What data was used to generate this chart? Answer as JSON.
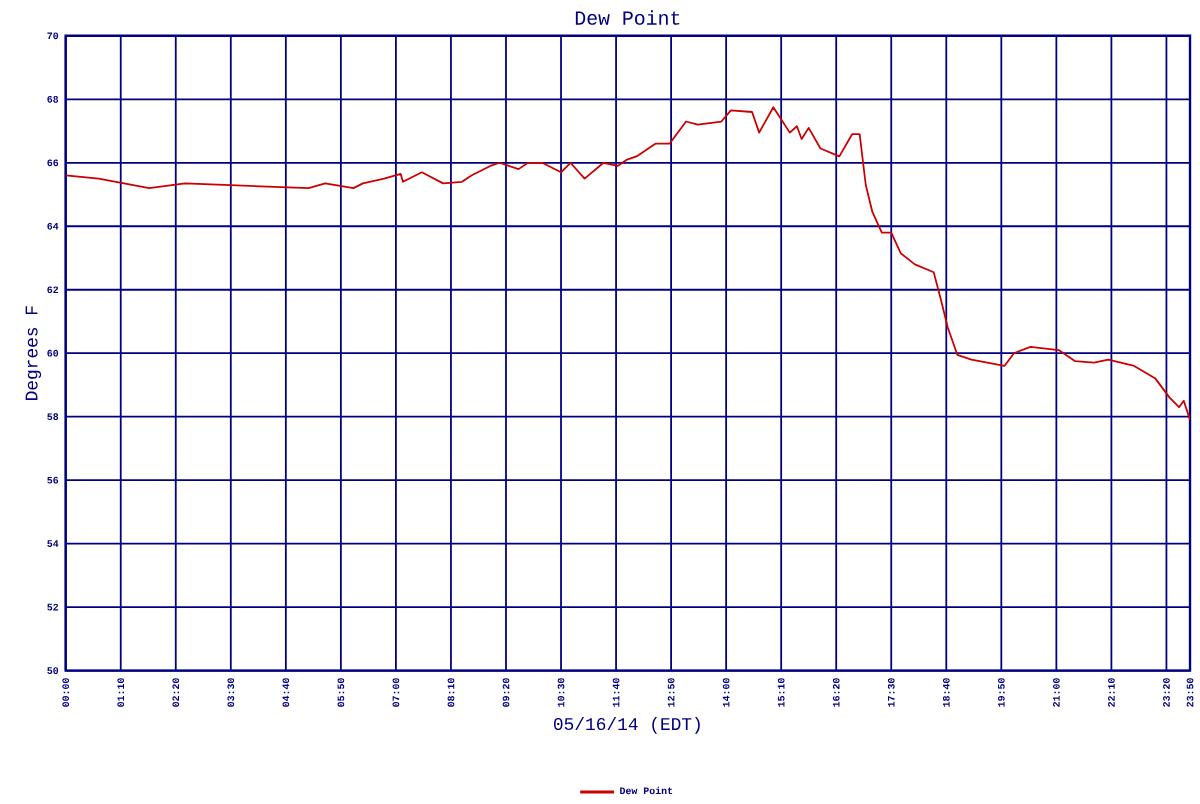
{
  "chart_data": {
    "type": "line",
    "title": "Dew Point",
    "xlabel": "05/16/14 (EDT)",
    "ylabel": "Degrees F",
    "xlim": [
      0,
      23.8333
    ],
    "ylim": [
      50,
      70
    ],
    "xticks": [
      {
        "value": 0,
        "label": "00:00"
      },
      {
        "value": 1.1667,
        "label": "01:10"
      },
      {
        "value": 2.3333,
        "label": "02:20"
      },
      {
        "value": 3.5,
        "label": "03:30"
      },
      {
        "value": 4.6667,
        "label": "04:40"
      },
      {
        "value": 5.8333,
        "label": "05:50"
      },
      {
        "value": 7,
        "label": "07:00"
      },
      {
        "value": 8.1667,
        "label": "08:10"
      },
      {
        "value": 9.3333,
        "label": "09:20"
      },
      {
        "value": 10.5,
        "label": "10:30"
      },
      {
        "value": 11.6667,
        "label": "11:40"
      },
      {
        "value": 12.8333,
        "label": "12:50"
      },
      {
        "value": 14,
        "label": "14:00"
      },
      {
        "value": 15.1667,
        "label": "15:10"
      },
      {
        "value": 16.3333,
        "label": "16:20"
      },
      {
        "value": 17.5,
        "label": "17:30"
      },
      {
        "value": 18.6667,
        "label": "18:40"
      },
      {
        "value": 19.8333,
        "label": "19:50"
      },
      {
        "value": 21,
        "label": "21:00"
      },
      {
        "value": 22.1667,
        "label": "22:10"
      },
      {
        "value": 23.3333,
        "label": "23:20"
      },
      {
        "value": 23.8333,
        "label": "23:50"
      }
    ],
    "yticks": [
      50,
      52,
      54,
      56,
      58,
      60,
      62,
      64,
      66,
      68,
      70
    ],
    "grid": true,
    "legend": "bottom",
    "series": [
      {
        "name": "Dew Point",
        "color": "#cc0000",
        "x": [
          0,
          0.7,
          1.77,
          2.53,
          5.15,
          5.5,
          6.1,
          6.3,
          6.75,
          7.1,
          7.15,
          7.55,
          8.0,
          8.4,
          8.6,
          9.0,
          9.2,
          9.6,
          9.8,
          10.1,
          10.5,
          10.7,
          11.0,
          11.4,
          11.7,
          11.9,
          12.1,
          12.5,
          12.8,
          13.15,
          13.4,
          13.9,
          14.1,
          14.55,
          14.7,
          15.0,
          15.35,
          15.5,
          15.6,
          15.75,
          16.0,
          16.4,
          16.67,
          16.83,
          16.96,
          17.1,
          17.3,
          17.5,
          17.7,
          18.0,
          18.4,
          18.55,
          18.7,
          18.9,
          19.2,
          19.9,
          20.1,
          20.45,
          21.05,
          21.4,
          21.8,
          22.1,
          22.65,
          23.1,
          23.4,
          23.6,
          23.7,
          23.8333
        ],
        "values": [
          65.6,
          65.5,
          65.2,
          65.35,
          65.2,
          65.35,
          65.2,
          65.35,
          65.5,
          65.65,
          65.4,
          65.7,
          65.35,
          65.4,
          65.6,
          65.9,
          66.0,
          65.8,
          66.0,
          66.0,
          65.7,
          66.0,
          65.5,
          66.0,
          65.9,
          66.1,
          66.2,
          66.6,
          66.6,
          67.3,
          67.2,
          67.3,
          67.65,
          67.6,
          66.95,
          67.75,
          66.95,
          67.15,
          66.75,
          67.1,
          66.45,
          66.2,
          66.9,
          66.9,
          65.3,
          64.45,
          63.8,
          63.8,
          63.15,
          62.8,
          62.55,
          61.7,
          60.8,
          59.95,
          59.8,
          59.6,
          60.0,
          60.2,
          60.1,
          59.75,
          59.7,
          59.8,
          59.6,
          59.2,
          58.6,
          58.3,
          58.5,
          57.9
        ]
      }
    ]
  }
}
